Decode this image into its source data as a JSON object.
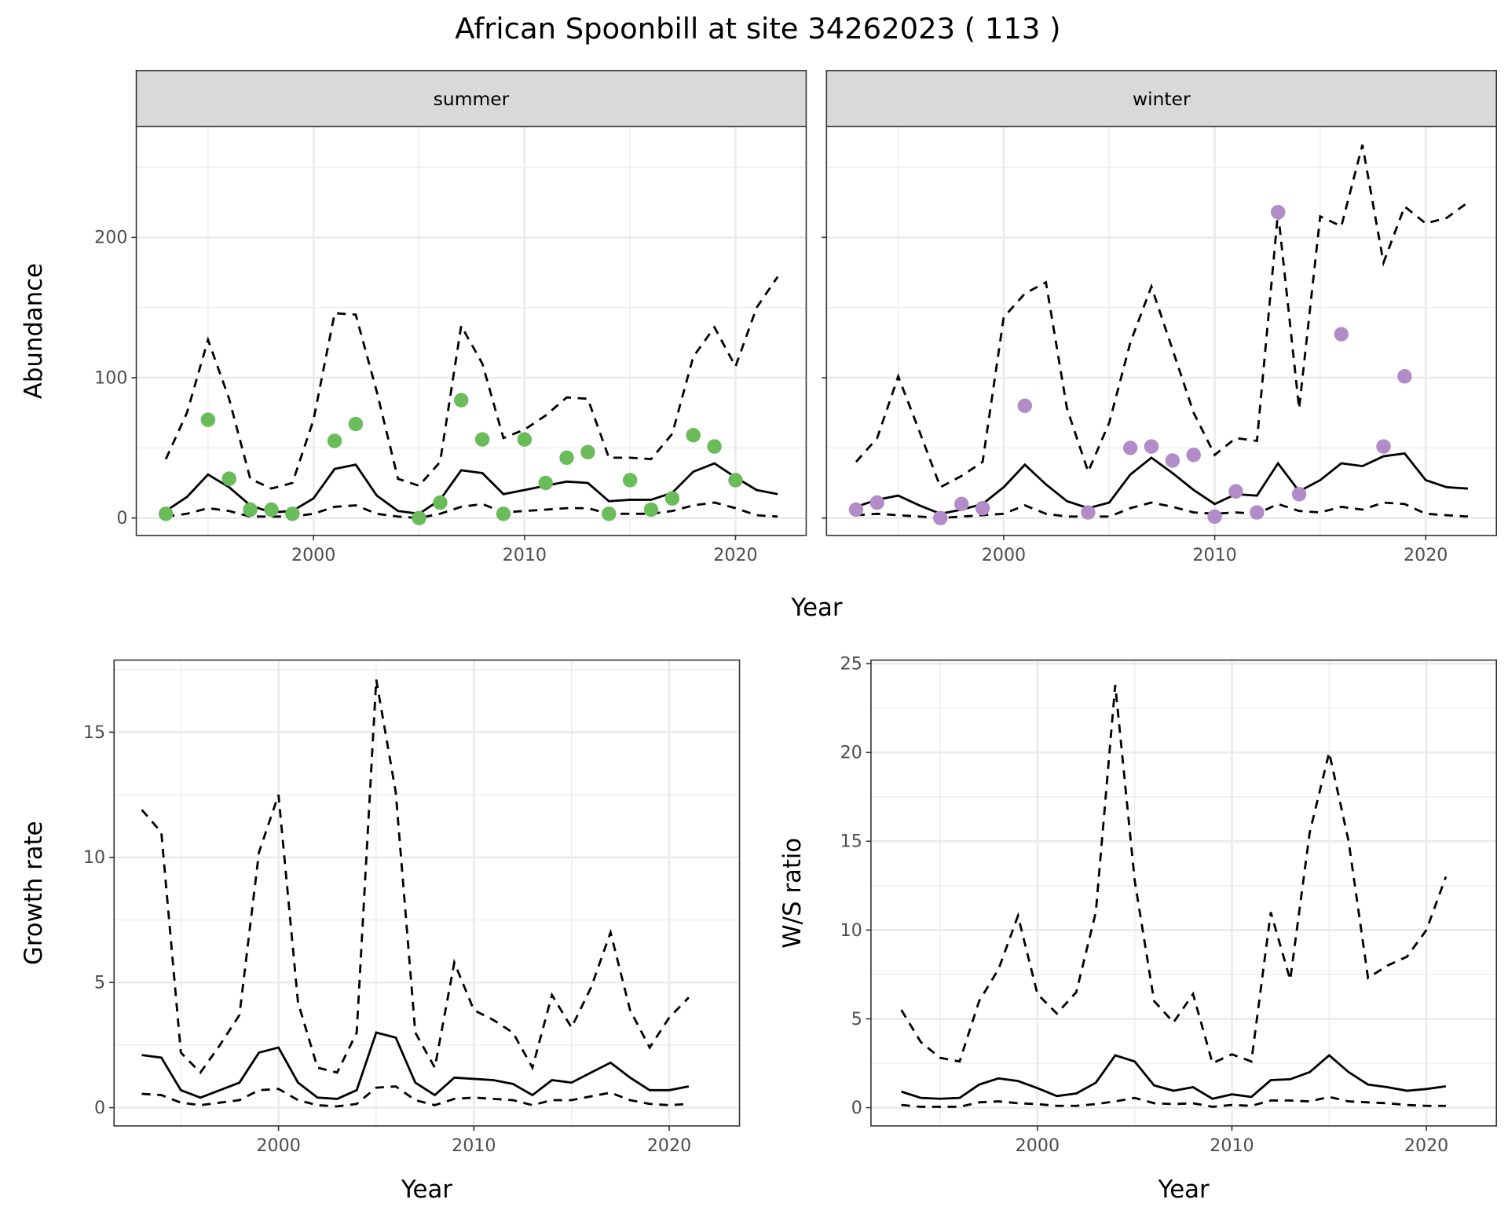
{
  "title": "African Spoonbill at site 34262023 ( 113 )",
  "colors": {
    "summer_points": "#6ABB59",
    "winter_points": "#B28BC9",
    "lines": "#000000",
    "strip_bg": "#D9D9D9",
    "grid": "#EBEBEB"
  },
  "chart_data": [
    {
      "id": "summer",
      "type": "line",
      "strip": "summer",
      "xlabel": "",
      "ylabel": "Abundance",
      "xlim": [
        1991.6,
        2023.35
      ],
      "ylim": [
        -12.4,
        279
      ],
      "xticks": [
        2000,
        2010,
        2020
      ],
      "yticks": [
        0,
        100,
        200
      ],
      "grid": true,
      "point_color": "#6ABB59",
      "points": {
        "x": [
          1993,
          1995,
          1996,
          1997,
          1998,
          1999,
          2001,
          2002,
          2005,
          2006,
          2007,
          2008,
          2009,
          2010,
          2011,
          2012,
          2013,
          2014,
          2015,
          2016,
          2017,
          2018,
          2019,
          2020
        ],
        "y": [
          3,
          70,
          28,
          6,
          6,
          3,
          55,
          67,
          0,
          11,
          84,
          56,
          3,
          56,
          25,
          43,
          47,
          3,
          27,
          6,
          14,
          59,
          51,
          27
        ]
      },
      "x": [
        1993,
        1994,
        1995,
        1996,
        1997,
        1998,
        1999,
        2000,
        2001,
        2002,
        2003,
        2004,
        2005,
        2006,
        2007,
        2008,
        2009,
        2010,
        2011,
        2012,
        2013,
        2014,
        2015,
        2016,
        2017,
        2018,
        2019,
        2020,
        2021,
        2022
      ],
      "estimate": [
        5,
        15,
        31,
        22,
        9,
        4,
        5,
        14,
        35,
        38,
        16,
        5,
        3,
        13,
        34,
        32,
        17,
        20,
        23,
        26,
        25,
        12,
        13,
        13,
        18,
        33,
        39,
        29,
        20,
        17
      ],
      "upper": [
        42,
        75,
        127,
        85,
        28,
        21,
        25,
        70,
        146,
        145,
        90,
        28,
        23,
        40,
        137,
        110,
        57,
        63,
        73,
        86,
        85,
        43,
        43,
        42,
        60,
        115,
        136,
        108,
        150,
        172
      ],
      "lower": [
        1,
        3,
        7,
        5,
        1,
        1,
        1,
        3,
        8,
        9,
        3,
        1,
        0,
        3,
        8,
        10,
        4,
        5,
        6,
        7,
        7,
        3,
        3,
        3,
        5,
        9,
        11,
        7,
        2,
        1
      ]
    },
    {
      "id": "winter",
      "type": "line",
      "strip": "winter",
      "xlabel": "",
      "ylabel": "",
      "xlim": [
        1991.6,
        2023.35
      ],
      "ylim": [
        -12.4,
        279
      ],
      "xticks": [
        2000,
        2010,
        2020
      ],
      "yticks": [],
      "grid": true,
      "point_color": "#B28BC9",
      "points": {
        "x": [
          1993,
          1994,
          1997,
          1998,
          1999,
          2001,
          2004,
          2006,
          2007,
          2008,
          2009,
          2010,
          2011,
          2012,
          2013,
          2014,
          2016,
          2018,
          2019
        ],
        "y": [
          6,
          11,
          0,
          10,
          7,
          80,
          4,
          50,
          51,
          41,
          45,
          1,
          19,
          4,
          218,
          17,
          131,
          51,
          101
        ]
      },
      "x": [
        1993,
        1994,
        1995,
        1996,
        1997,
        1998,
        1999,
        2000,
        2001,
        2002,
        2003,
        2004,
        2005,
        2006,
        2007,
        2008,
        2009,
        2010,
        2011,
        2012,
        2013,
        2014,
        2015,
        2016,
        2017,
        2018,
        2019,
        2020,
        2021,
        2022
      ],
      "estimate": [
        8,
        13,
        16,
        9,
        3,
        6,
        10,
        22,
        38,
        24,
        12,
        7,
        11,
        31,
        43,
        32,
        20,
        10,
        17,
        16,
        39,
        19,
        27,
        39,
        37,
        44,
        46,
        27,
        22,
        21
      ],
      "upper": [
        40,
        57,
        101,
        62,
        22,
        30,
        40,
        143,
        160,
        168,
        78,
        33,
        68,
        125,
        165,
        120,
        75,
        45,
        57,
        55,
        218,
        78,
        215,
        208,
        266,
        182,
        222,
        210,
        214,
        225
      ],
      "lower": [
        2,
        3,
        2,
        1,
        0,
        1,
        2,
        3,
        9,
        3,
        1,
        1,
        1,
        7,
        11,
        8,
        4,
        3,
        4,
        3,
        10,
        5,
        4,
        8,
        6,
        11,
        10,
        3,
        2,
        1
      ]
    },
    {
      "id": "growth",
      "type": "line",
      "xlabel": "Year",
      "ylabel": "Growth rate",
      "xlim": [
        1991.58,
        2023.6
      ],
      "ylim": [
        -0.73,
        17.88
      ],
      "xticks": [
        2000,
        2010,
        2020
      ],
      "yticks": [
        0,
        5,
        10,
        15
      ],
      "grid": true,
      "x": [
        1993,
        1994,
        1995,
        1996,
        1997,
        1998,
        1999,
        2000,
        2001,
        2002,
        2003,
        2004,
        2005,
        2006,
        2007,
        2008,
        2009,
        2010,
        2011,
        2012,
        2013,
        2014,
        2015,
        2016,
        2017,
        2018,
        2019,
        2020,
        2021
      ],
      "estimate": [
        2.1,
        2.0,
        0.7,
        0.4,
        0.7,
        1.0,
        2.2,
        2.4,
        1.0,
        0.4,
        0.35,
        0.7,
        3.0,
        2.8,
        1.0,
        0.5,
        1.2,
        1.15,
        1.1,
        0.95,
        0.5,
        1.1,
        1.0,
        1.4,
        1.8,
        1.2,
        0.7,
        0.7,
        0.85
      ],
      "upper": [
        11.9,
        11.0,
        2.2,
        1.4,
        2.5,
        3.7,
        10.2,
        12.5,
        4.2,
        1.6,
        1.4,
        3.0,
        17.1,
        12.6,
        3.0,
        1.6,
        5.8,
        3.9,
        3.5,
        3.0,
        1.6,
        4.5,
        3.2,
        4.8,
        7.0,
        3.9,
        2.4,
        3.6,
        4.4
      ],
      "lower": [
        0.55,
        0.5,
        0.2,
        0.1,
        0.2,
        0.3,
        0.7,
        0.75,
        0.3,
        0.1,
        0.05,
        0.15,
        0.8,
        0.85,
        0.3,
        0.1,
        0.35,
        0.4,
        0.35,
        0.3,
        0.1,
        0.3,
        0.3,
        0.45,
        0.6,
        0.3,
        0.15,
        0.1,
        0.15
      ]
    },
    {
      "id": "ratio",
      "type": "line",
      "xlabel": "Year",
      "ylabel": "W/S ratio",
      "xlim": [
        1991.44,
        2023.6
      ],
      "ylim": [
        -1.03,
        25.2
      ],
      "xticks": [
        2000,
        2010,
        2020
      ],
      "yticks": [
        0,
        5,
        10,
        15,
        20,
        25
      ],
      "grid": true,
      "x": [
        1993,
        1994,
        1995,
        1996,
        1997,
        1998,
        1999,
        2000,
        2001,
        2002,
        2003,
        2004,
        2005,
        2006,
        2007,
        2008,
        2009,
        2010,
        2011,
        2012,
        2013,
        2014,
        2015,
        2016,
        2017,
        2018,
        2019,
        2020,
        2021
      ],
      "estimate": [
        0.9,
        0.55,
        0.5,
        0.55,
        1.3,
        1.65,
        1.5,
        1.1,
        0.65,
        0.8,
        1.4,
        2.95,
        2.6,
        1.25,
        0.95,
        1.15,
        0.5,
        0.75,
        0.6,
        1.55,
        1.6,
        2.0,
        2.95,
        2.0,
        1.3,
        1.15,
        0.95,
        1.05,
        1.2
      ],
      "upper": [
        5.5,
        3.7,
        2.8,
        2.6,
        6.0,
        7.8,
        10.8,
        6.4,
        5.3,
        6.5,
        11.0,
        23.8,
        12.8,
        6.0,
        4.8,
        6.4,
        2.5,
        3.0,
        2.6,
        11.0,
        7.2,
        15.5,
        20.0,
        15.0,
        7.3,
        8.0,
        8.5,
        10.0,
        13.0
      ],
      "lower": [
        0.15,
        0.05,
        0.05,
        0.05,
        0.3,
        0.35,
        0.25,
        0.2,
        0.1,
        0.1,
        0.2,
        0.35,
        0.55,
        0.25,
        0.2,
        0.25,
        0.05,
        0.15,
        0.1,
        0.4,
        0.4,
        0.35,
        0.6,
        0.35,
        0.3,
        0.25,
        0.15,
        0.1,
        0.1
      ]
    }
  ],
  "shared_labels": {
    "top_xlabel": "Year"
  }
}
